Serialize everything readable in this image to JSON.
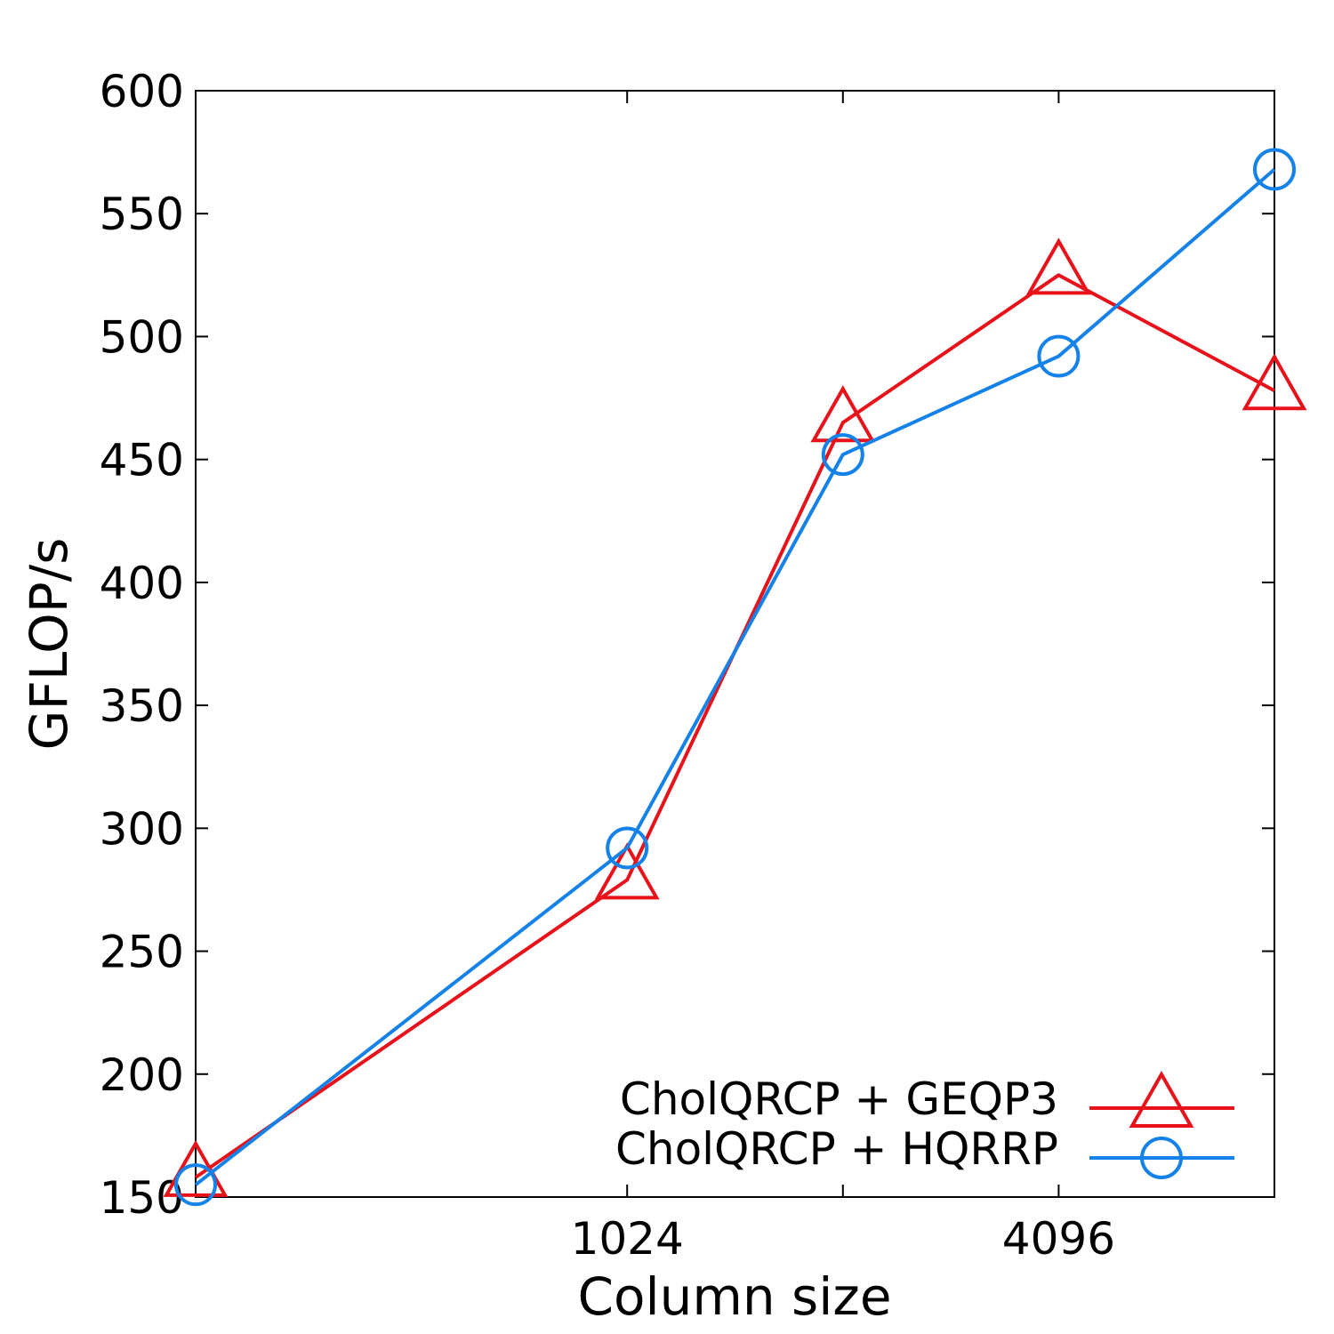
{
  "chart_data": {
    "type": "line",
    "xlabel": "Column size",
    "ylabel": "GFLOP/s",
    "x_scale": "log2",
    "x": [
      256,
      1024,
      2048,
      4096,
      8192
    ],
    "x_tick_labels": [
      {
        "x": 1024,
        "label": "1024"
      },
      {
        "x": 4096,
        "label": "4096"
      }
    ],
    "x_minor_ticks": [
      2048
    ],
    "xlim": [
      512,
      8192
    ],
    "ylim": [
      150,
      600
    ],
    "y_ticks": [
      150,
      200,
      250,
      300,
      350,
      400,
      450,
      500,
      550,
      600
    ],
    "y_tick_labels": [
      "150",
      "200",
      "250",
      "300",
      "350",
      "400",
      "450",
      "500",
      "550",
      "600"
    ],
    "grid": false,
    "legend_position": "bottom-right",
    "series": [
      {
        "name": "CholQRCP + GEQP3",
        "color": "#e8121a",
        "marker": "triangle",
        "values": [
          158,
          279,
          465,
          525,
          478
        ]
      },
      {
        "name": "CholQRCP + HQRRP",
        "color": "#1482e8",
        "marker": "circle",
        "values": [
          155,
          292,
          452,
          492,
          568
        ]
      }
    ]
  }
}
